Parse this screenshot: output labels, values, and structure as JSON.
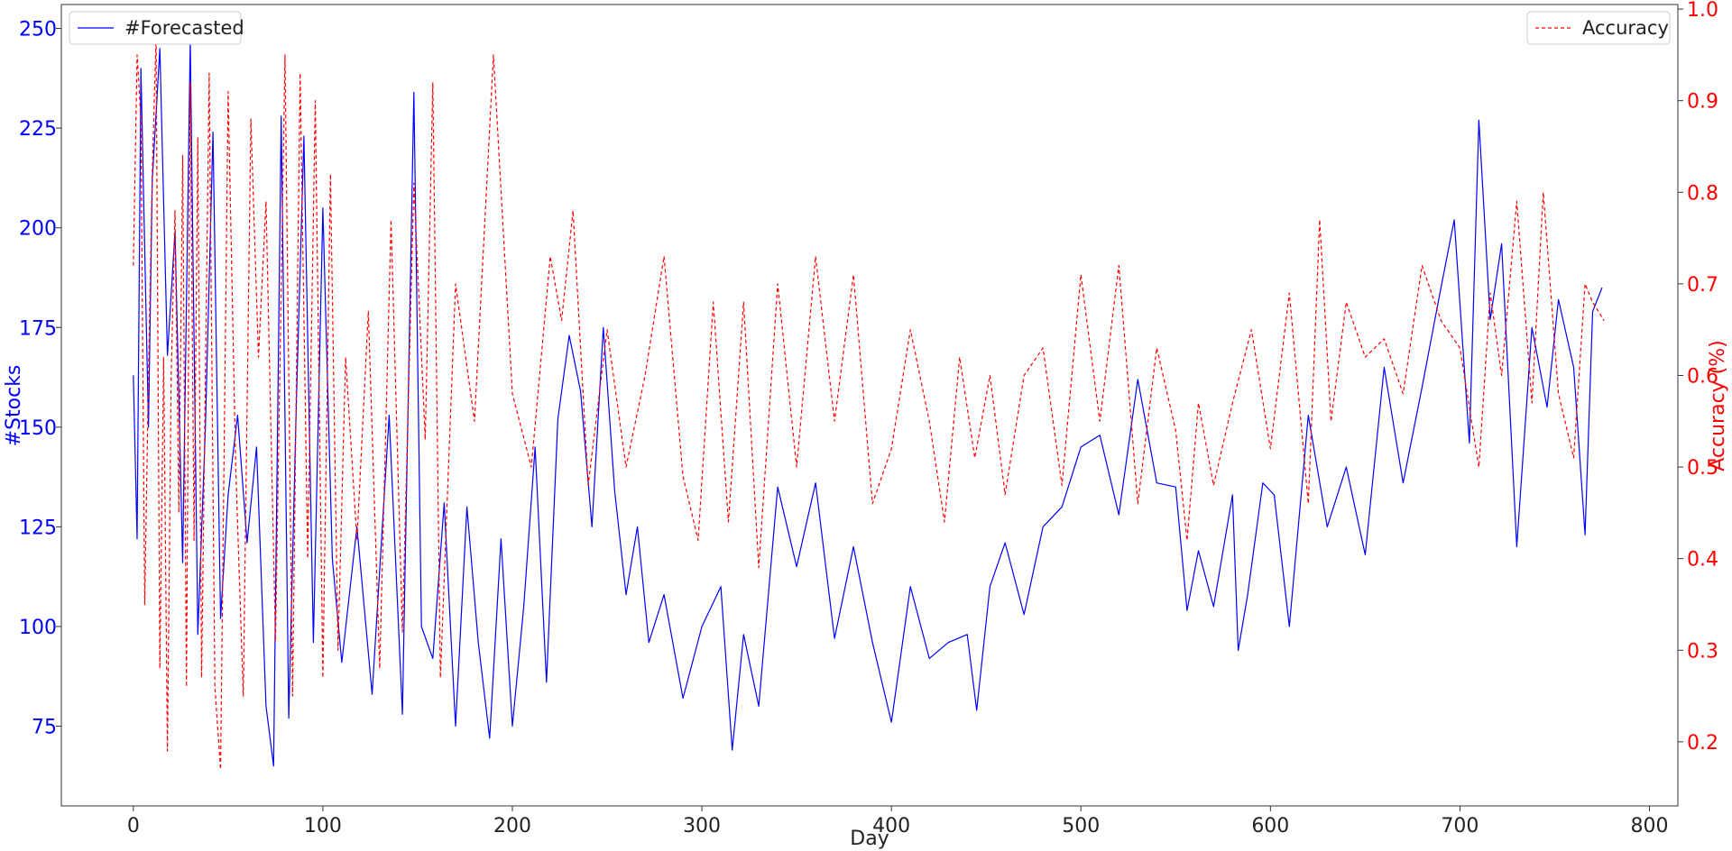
{
  "chart_data": {
    "type": "line",
    "xlabel": "Day",
    "ylabel_left": "#Stocks",
    "ylabel_right": "Accuracy (%)",
    "xlim": [
      -38,
      815
    ],
    "ylim_left": [
      55,
      256
    ],
    "ylim_right": [
      0.13,
      1.005
    ],
    "x_ticks": [
      0,
      100,
      200,
      300,
      400,
      500,
      600,
      700,
      800
    ],
    "y_left_ticks": [
      75,
      100,
      125,
      150,
      175,
      200,
      225,
      250
    ],
    "y_right_ticks": [
      0.2,
      0.3,
      0.4,
      0.5,
      0.6,
      0.7,
      0.8,
      0.9,
      1.0
    ],
    "grid": false,
    "colors": {
      "forecasted": "#0000ff",
      "accuracy": "#ff0000",
      "left_axis_text": "#0000ff",
      "right_axis_text": "#ff0000"
    },
    "series": [
      {
        "name": "#Forecasted",
        "axis": "left",
        "style": "solid",
        "x": [
          0,
          2,
          4,
          8,
          10,
          14,
          18,
          22,
          26,
          30,
          34,
          38,
          42,
          46,
          50,
          55,
          60,
          65,
          70,
          74,
          78,
          82,
          86,
          90,
          95,
          100,
          105,
          110,
          118,
          126,
          135,
          142,
          148,
          152,
          158,
          164,
          170,
          176,
          182,
          188,
          194,
          200,
          206,
          212,
          218,
          224,
          230,
          236,
          242,
          248,
          254,
          260,
          266,
          272,
          280,
          290,
          300,
          310,
          316,
          322,
          330,
          340,
          350,
          360,
          370,
          380,
          390,
          400,
          410,
          420,
          430,
          440,
          445,
          452,
          460,
          470,
          480,
          490,
          500,
          510,
          520,
          530,
          540,
          550,
          556,
          562,
          570,
          580,
          583,
          588,
          596,
          602,
          610,
          620,
          630,
          640,
          650,
          660,
          670,
          680,
          690,
          697,
          705,
          710,
          716,
          722,
          730,
          738,
          746,
          752,
          760,
          766,
          770,
          775
        ],
        "y": [
          163,
          122,
          240,
          150,
          212,
          245,
          168,
          199,
          116,
          247,
          98,
          150,
          224,
          102,
          133,
          153,
          121,
          145,
          80,
          65,
          228,
          77,
          156,
          223,
          96,
          205,
          117,
          91,
          125,
          83,
          153,
          78,
          234,
          100,
          92,
          131,
          75,
          130,
          96,
          72,
          122,
          75,
          105,
          145,
          86,
          152,
          173,
          159,
          125,
          175,
          134,
          108,
          125,
          96,
          108,
          82,
          100,
          110,
          69,
          98,
          80,
          135,
          115,
          136,
          97,
          120,
          96,
          76,
          110,
          92,
          96,
          98,
          79,
          110,
          121,
          103,
          125,
          130,
          145,
          148,
          128,
          162,
          136,
          135,
          104,
          119,
          105,
          133,
          94,
          108,
          136,
          133,
          100,
          153,
          125,
          140,
          118,
          165,
          136,
          160,
          185,
          202,
          146,
          227,
          177,
          196,
          120,
          175,
          155,
          182,
          165,
          123,
          179,
          185
        ]
      },
      {
        "name": "Accuracy",
        "axis": "right",
        "style": "dashed",
        "x": [
          0,
          2,
          4,
          6,
          8,
          10,
          12,
          14,
          16,
          18,
          20,
          22,
          24,
          26,
          28,
          30,
          32,
          34,
          36,
          40,
          43,
          46,
          50,
          54,
          58,
          62,
          66,
          70,
          75,
          80,
          84,
          88,
          92,
          96,
          100,
          104,
          108,
          112,
          118,
          124,
          130,
          136,
          142,
          148,
          154,
          158,
          162,
          170,
          180,
          190,
          200,
          210,
          220,
          226,
          232,
          240,
          250,
          260,
          270,
          280,
          290,
          298,
          306,
          314,
          322,
          330,
          340,
          350,
          360,
          370,
          380,
          390,
          400,
          410,
          420,
          428,
          436,
          444,
          452,
          460,
          470,
          480,
          490,
          500,
          510,
          520,
          530,
          540,
          550,
          556,
          562,
          570,
          580,
          590,
          600,
          610,
          620,
          626,
          632,
          640,
          650,
          660,
          670,
          680,
          690,
          700,
          710,
          716,
          722,
          730,
          738,
          744,
          752,
          760,
          766,
          770,
          776
        ],
        "y": [
          0.72,
          0.95,
          0.88,
          0.35,
          0.6,
          0.82,
          0.97,
          0.28,
          0.62,
          0.19,
          0.6,
          0.78,
          0.45,
          0.84,
          0.26,
          0.92,
          0.42,
          0.86,
          0.27,
          0.93,
          0.26,
          0.17,
          0.91,
          0.5,
          0.25,
          0.88,
          0.62,
          0.79,
          0.31,
          0.95,
          0.25,
          0.93,
          0.4,
          0.9,
          0.27,
          0.82,
          0.3,
          0.62,
          0.42,
          0.67,
          0.28,
          0.77,
          0.32,
          0.81,
          0.53,
          0.92,
          0.27,
          0.7,
          0.55,
          0.95,
          0.58,
          0.5,
          0.73,
          0.66,
          0.78,
          0.48,
          0.65,
          0.5,
          0.6,
          0.73,
          0.49,
          0.42,
          0.68,
          0.44,
          0.68,
          0.39,
          0.7,
          0.5,
          0.73,
          0.55,
          0.71,
          0.46,
          0.52,
          0.65,
          0.55,
          0.44,
          0.62,
          0.51,
          0.6,
          0.47,
          0.6,
          0.63,
          0.48,
          0.71,
          0.55,
          0.72,
          0.46,
          0.63,
          0.54,
          0.42,
          0.57,
          0.48,
          0.57,
          0.65,
          0.52,
          0.69,
          0.46,
          0.77,
          0.55,
          0.68,
          0.62,
          0.64,
          0.58,
          0.72,
          0.66,
          0.63,
          0.5,
          0.69,
          0.6,
          0.79,
          0.57,
          0.8,
          0.58,
          0.51,
          0.7,
          0.68,
          0.66
        ]
      }
    ]
  }
}
